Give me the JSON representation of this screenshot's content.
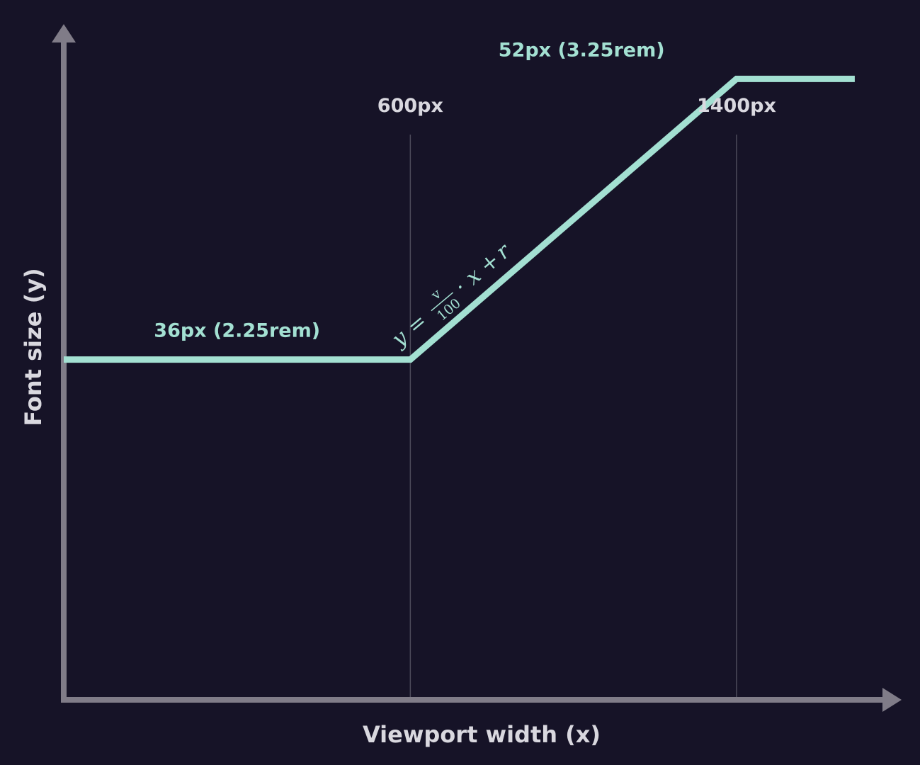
{
  "colors": {
    "background": "#161327",
    "axis": "#807c88",
    "guide": "#4c4a5a",
    "series": "#a3e0d2",
    "label": "#d9d8df"
  },
  "chart_data": {
    "type": "line",
    "title": "",
    "xlabel": "Viewport width (x)",
    "ylabel": "Font size (y)",
    "x_unit": "px",
    "y_unit": "px",
    "xlim": [
      -250,
      1850
    ],
    "ylim": [
      16.6,
      56.5
    ],
    "grid": false,
    "legend": "none",
    "x_markers": [
      {
        "value": 600,
        "label": "600px"
      },
      {
        "value": 1400,
        "label": "1400px"
      }
    ],
    "series": [
      {
        "x": [
          -250,
          600,
          1400,
          1690
        ],
        "y": [
          36,
          36,
          52,
          52
        ]
      }
    ],
    "point_labels": [
      {
        "x": 175,
        "y": 36,
        "text": "36px (2.25rem)"
      },
      {
        "x": 1020,
        "y": 52,
        "text": "52px (3.25rem)"
      }
    ],
    "annotation": {
      "lhs": "y",
      "equals": "=",
      "numerator": "v",
      "denominator": "100",
      "dot": "·",
      "term": "x",
      "plus": "+",
      "constant": "r"
    }
  }
}
